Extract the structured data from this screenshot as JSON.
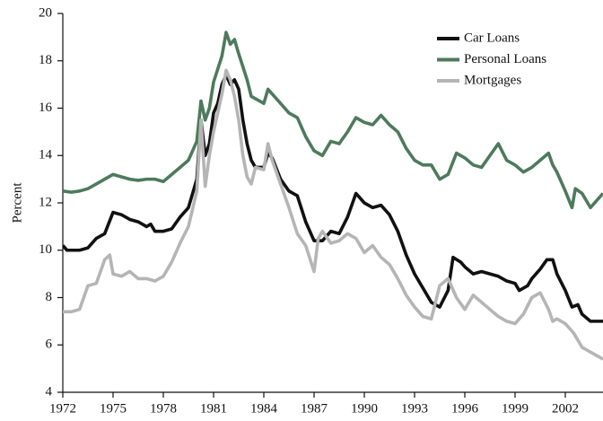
{
  "chart_data": {
    "type": "line",
    "ylabel": "Percent",
    "xlim": [
      1972,
      2004.25
    ],
    "xticks": [
      1972,
      1975,
      1978,
      1981,
      1984,
      1987,
      1990,
      1993,
      1996,
      1999,
      2002
    ],
    "ylim": [
      4,
      20
    ],
    "yticks": [
      4,
      6,
      8,
      10,
      12,
      14,
      16,
      18,
      20
    ],
    "grid": false,
    "legend": "upper right",
    "series": [
      {
        "name": "Car Loans",
        "color": "#111111",
        "x": [
          1972,
          1972.25,
          1973,
          1973.5,
          1974,
          1974.5,
          1975,
          1975.5,
          1976,
          1976.5,
          1977,
          1977.25,
          1977.5,
          1978,
          1978.5,
          1979,
          1979.5,
          1980,
          1980.25,
          1980.5,
          1980.75,
          1981,
          1981.25,
          1981.5,
          1981.75,
          1982,
          1982.25,
          1982.5,
          1982.75,
          1983,
          1983.25,
          1983.5,
          1984,
          1984.25,
          1984.5,
          1985,
          1985.5,
          1986,
          1986.5,
          1987,
          1987.5,
          1988,
          1988.5,
          1989,
          1989.5,
          1990,
          1990.5,
          1991,
          1991.5,
          1992,
          1992.5,
          1993,
          1993.5,
          1994,
          1994.5,
          1995,
          1995.3,
          1995.75,
          1996,
          1996.5,
          1997,
          1997.5,
          1998,
          1998.5,
          1999,
          1999.25,
          1999.75,
          2000,
          2000.5,
          2000.9,
          2001.25,
          2001.5,
          2002,
          2002.4,
          2002.75,
          2003,
          2003.5,
          2004.25
        ],
        "values": [
          10.2,
          10.0,
          10.0,
          10.1,
          10.5,
          10.7,
          11.6,
          11.5,
          11.3,
          11.2,
          11.0,
          11.1,
          10.8,
          10.8,
          10.9,
          11.4,
          11.8,
          13.0,
          15.5,
          14.0,
          14.5,
          15.8,
          16.2,
          17.0,
          17.4,
          17.0,
          17.2,
          16.8,
          15.5,
          14.5,
          13.8,
          13.5,
          13.5,
          14.1,
          13.9,
          13.0,
          12.5,
          12.3,
          11.2,
          10.4,
          10.4,
          10.8,
          10.7,
          11.4,
          12.4,
          12.0,
          11.8,
          11.9,
          11.5,
          10.8,
          9.8,
          9.0,
          8.4,
          7.8,
          7.6,
          8.3,
          9.7,
          9.5,
          9.3,
          9.0,
          9.1,
          9.0,
          8.9,
          8.7,
          8.6,
          8.3,
          8.5,
          8.8,
          9.2,
          9.6,
          9.6,
          9.0,
          8.3,
          7.6,
          7.7,
          7.3,
          7.0,
          7.0
        ]
      },
      {
        "name": "Personal Loans",
        "color": "#4d7a5c",
        "x": [
          1972,
          1972.5,
          1973,
          1973.5,
          1974,
          1974.5,
          1975,
          1975.5,
          1976,
          1976.5,
          1977,
          1977.5,
          1978,
          1978.5,
          1979,
          1979.5,
          1980,
          1980.25,
          1980.5,
          1980.75,
          1981,
          1981.5,
          1981.75,
          1982,
          1982.25,
          1982.5,
          1983,
          1983.25,
          1983.5,
          1984,
          1984.25,
          1984.5,
          1985,
          1985.5,
          1986,
          1986.5,
          1987,
          1987.5,
          1988,
          1988.5,
          1989,
          1989.5,
          1990,
          1990.5,
          1991,
          1991.5,
          1992,
          1992.5,
          1993,
          1993.5,
          1994,
          1994.5,
          1995,
          1995.5,
          1996,
          1996.5,
          1997,
          1997.5,
          1998,
          1998.5,
          1999,
          1999.5,
          2000,
          2000.5,
          2001,
          2001.25,
          2001.5,
          2002,
          2002.4,
          2002.6,
          2003,
          2003.5,
          2004.25
        ],
        "values": [
          12.5,
          12.45,
          12.5,
          12.6,
          12.8,
          13.0,
          13.2,
          13.1,
          13.0,
          12.95,
          13.0,
          13.0,
          12.9,
          13.2,
          13.5,
          13.8,
          14.6,
          16.3,
          15.5,
          16.0,
          17.1,
          18.2,
          19.2,
          18.7,
          18.9,
          18.3,
          17.2,
          16.5,
          16.4,
          16.2,
          16.8,
          16.6,
          16.2,
          15.8,
          15.6,
          14.8,
          14.2,
          14.0,
          14.6,
          14.5,
          15.0,
          15.6,
          15.4,
          15.3,
          15.7,
          15.3,
          15.0,
          14.3,
          13.8,
          13.6,
          13.6,
          13.0,
          13.2,
          14.1,
          13.9,
          13.6,
          13.5,
          14.0,
          14.5,
          13.8,
          13.6,
          13.3,
          13.5,
          13.8,
          14.1,
          13.6,
          13.3,
          12.5,
          11.8,
          12.6,
          12.4,
          11.8,
          12.4
        ]
      },
      {
        "name": "Mortgages",
        "color": "#b5b5b5",
        "x": [
          1972,
          1972.5,
          1973,
          1973.5,
          1974,
          1974.5,
          1974.8,
          1975,
          1975.5,
          1976,
          1976.5,
          1977,
          1977.5,
          1978,
          1978.5,
          1979,
          1979.5,
          1980,
          1980.25,
          1980.5,
          1980.75,
          1981,
          1981.5,
          1981.75,
          1982,
          1982.25,
          1982.5,
          1982.75,
          1983,
          1983.25,
          1983.5,
          1984,
          1984.25,
          1984.5,
          1985,
          1985.5,
          1986,
          1986.5,
          1987,
          1987.25,
          1987.5,
          1988,
          1988.5,
          1989,
          1989.5,
          1990,
          1990.5,
          1991,
          1991.5,
          1992,
          1992.5,
          1993,
          1993.5,
          1994,
          1994.5,
          1995,
          1995.5,
          1996,
          1996.5,
          1997,
          1997.5,
          1998,
          1998.5,
          1999,
          1999.5,
          2000,
          2000.5,
          2001,
          2001.25,
          2001.5,
          2002,
          2002.5,
          2003,
          2003.5,
          2004.25
        ],
        "values": [
          7.4,
          7.4,
          7.5,
          8.5,
          8.6,
          9.6,
          9.8,
          9.0,
          8.9,
          9.1,
          8.8,
          8.8,
          8.7,
          8.9,
          9.5,
          10.3,
          11.0,
          12.5,
          15.5,
          12.7,
          14.0,
          15.0,
          16.6,
          17.6,
          17.2,
          16.5,
          15.5,
          14.0,
          13.1,
          12.8,
          13.5,
          13.4,
          14.5,
          13.8,
          12.8,
          11.8,
          10.7,
          10.2,
          9.1,
          10.5,
          10.8,
          10.3,
          10.4,
          10.7,
          10.5,
          9.9,
          10.2,
          9.7,
          9.4,
          8.8,
          8.1,
          7.6,
          7.2,
          7.1,
          8.5,
          8.8,
          8.0,
          7.5,
          8.1,
          7.8,
          7.5,
          7.2,
          7.0,
          6.9,
          7.3,
          8.0,
          8.2,
          7.5,
          7.0,
          7.1,
          6.9,
          6.5,
          5.9,
          5.7,
          5.4
        ]
      }
    ]
  }
}
